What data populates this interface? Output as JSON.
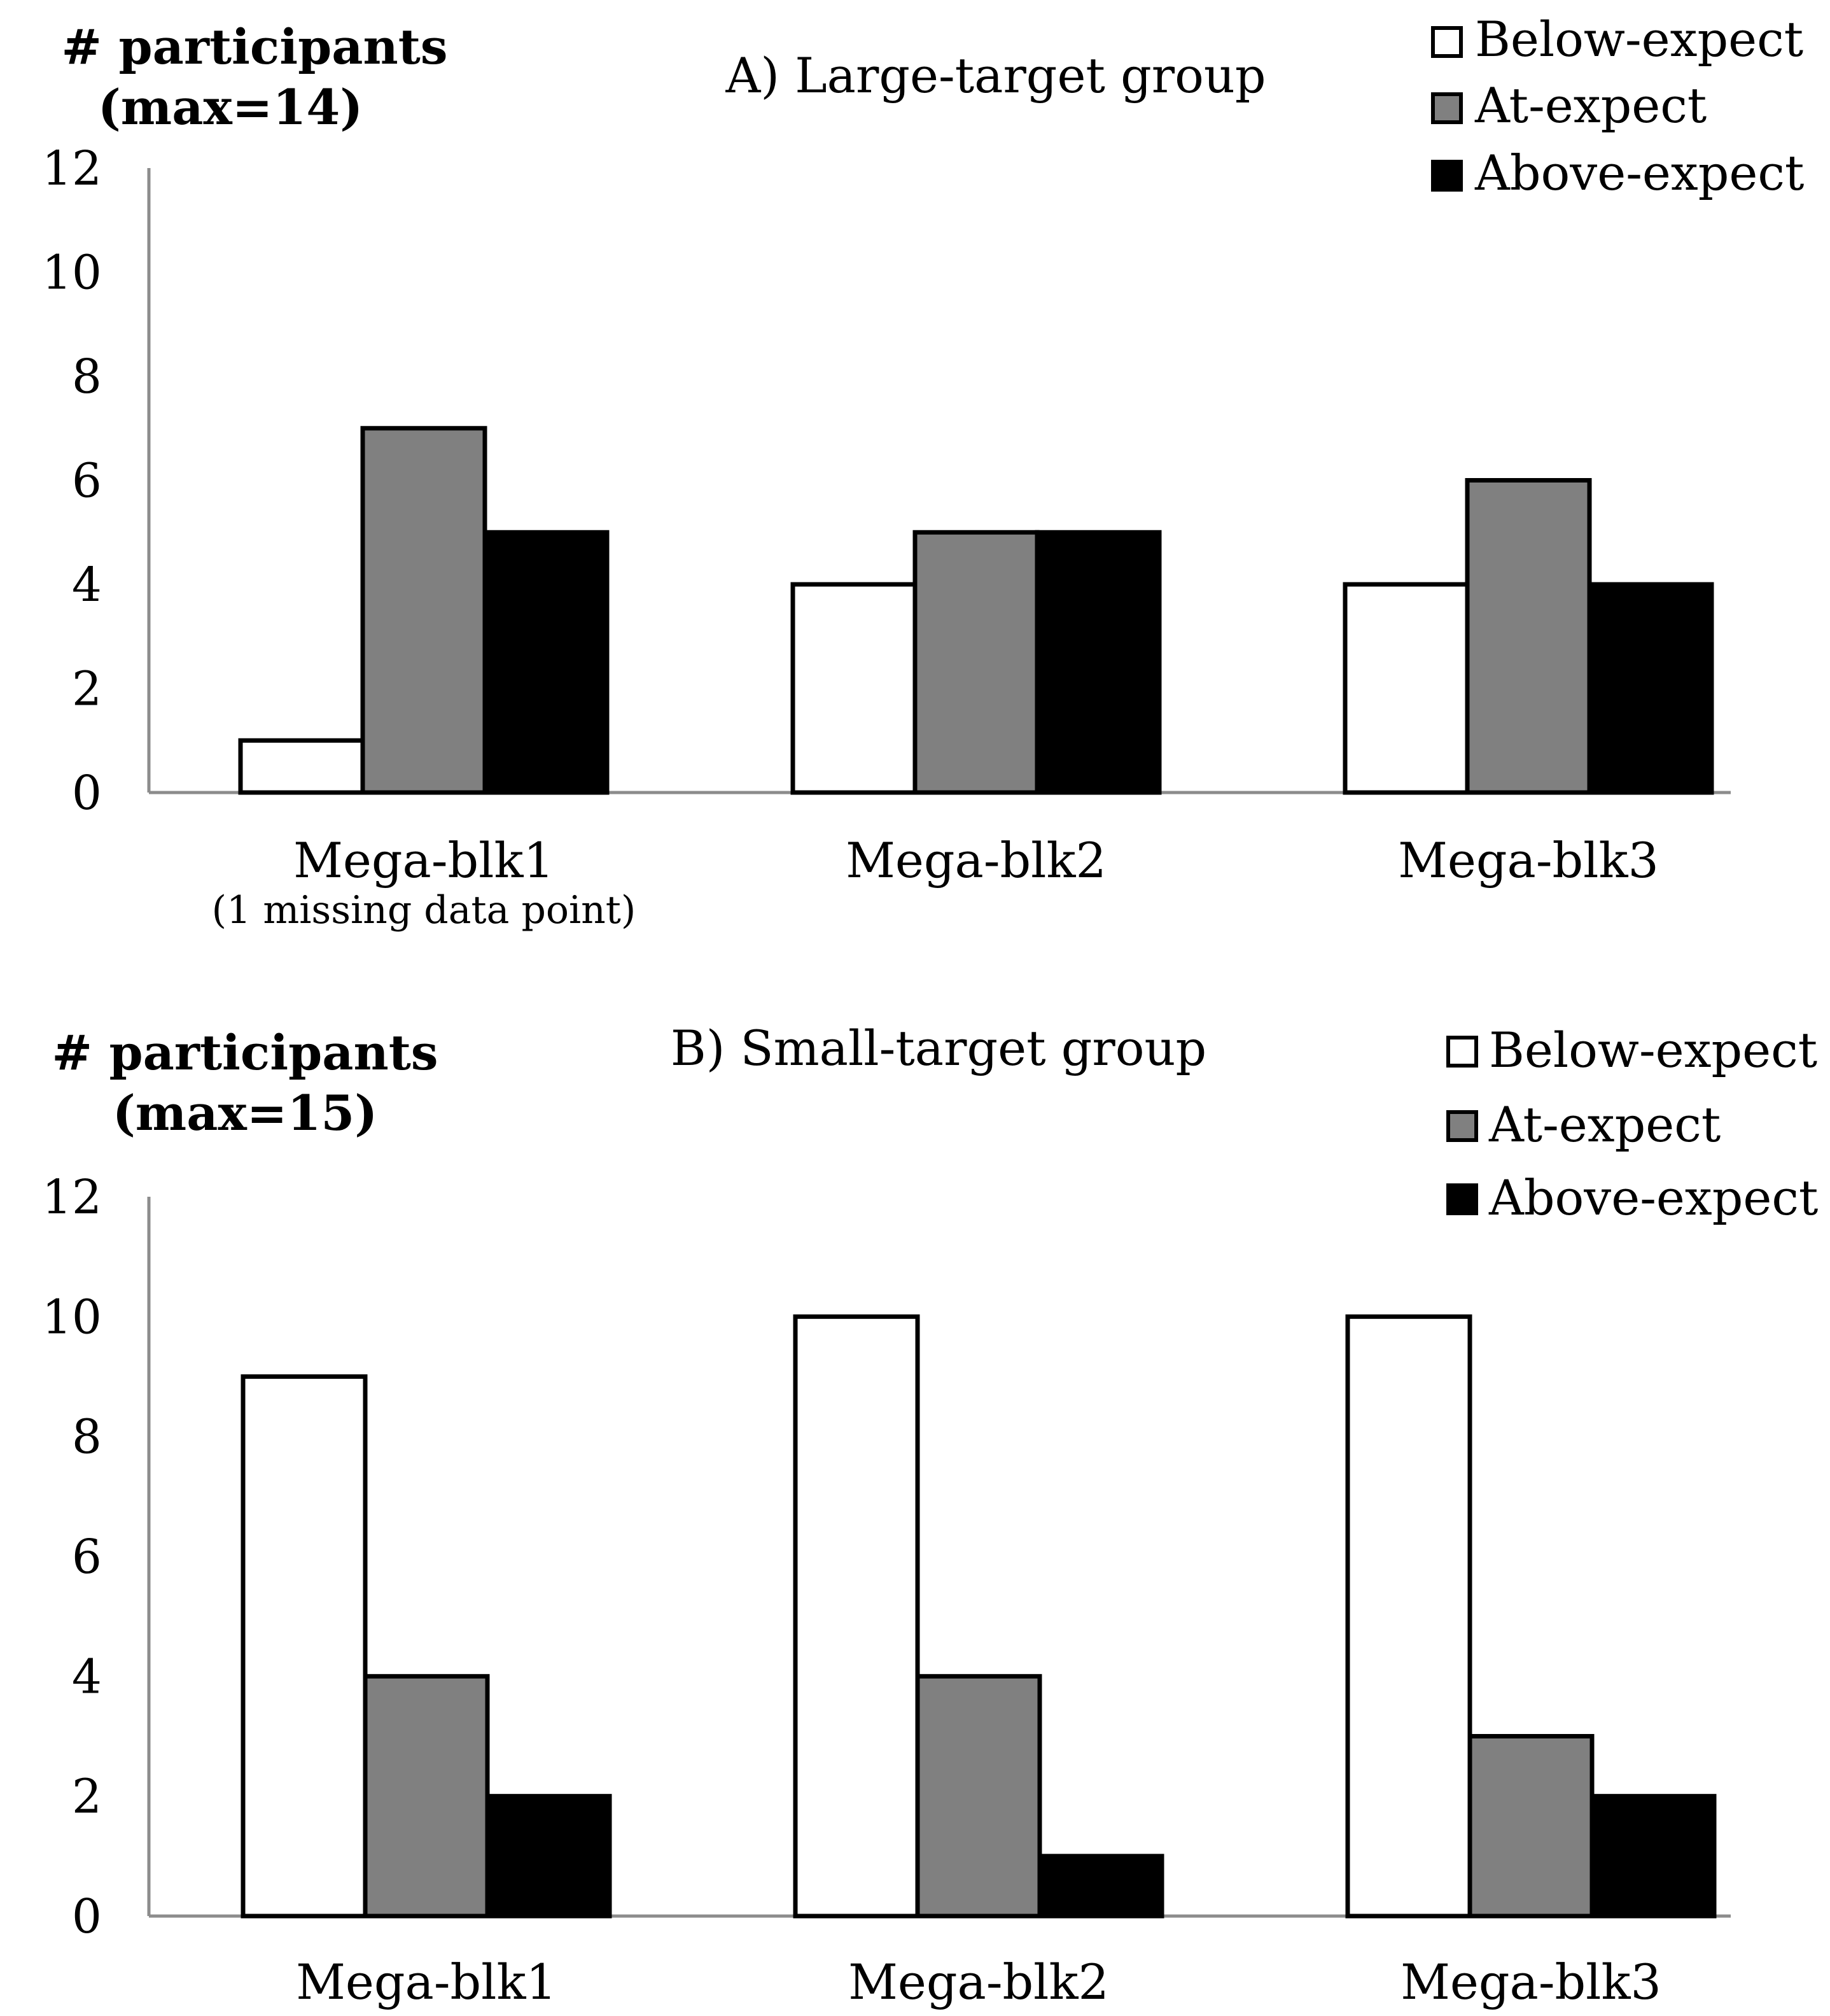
{
  "chart_data": [
    {
      "type": "bar",
      "title": "A) Large-target group",
      "ylabel_lines": [
        "# participants",
        "(max=14)"
      ],
      "xlabel": "",
      "categories": [
        "Mega-blk1",
        "Mega-blk2",
        "Mega-blk3"
      ],
      "category_notes": [
        "(1 missing data point)",
        "",
        ""
      ],
      "series": [
        {
          "name": "Below-expect",
          "color": "#ffffff",
          "values": [
            1,
            4,
            4
          ]
        },
        {
          "name": "At-expect",
          "color": "#808080",
          "values": [
            7,
            5,
            6
          ]
        },
        {
          "name": "Above-expect",
          "color": "#000000",
          "values": [
            5,
            5,
            4
          ]
        }
      ],
      "ylim": [
        0,
        12
      ],
      "yticks": [
        "0",
        "2",
        "4",
        "6",
        "8",
        "10",
        "12"
      ],
      "grid": false,
      "legend_position": "top-right"
    },
    {
      "type": "bar",
      "title": "B) Small-target group",
      "ylabel_lines": [
        "# participants",
        "(max=15)"
      ],
      "xlabel": "",
      "categories": [
        "Mega-blk1",
        "Mega-blk2",
        "Mega-blk3"
      ],
      "category_notes": [
        "",
        "",
        ""
      ],
      "series": [
        {
          "name": "Below-expect",
          "color": "#ffffff",
          "values": [
            9,
            10,
            10
          ]
        },
        {
          "name": "At-expect",
          "color": "#808080",
          "values": [
            4,
            4,
            3
          ]
        },
        {
          "name": "Above-expect",
          "color": "#000000",
          "values": [
            2,
            1,
            2
          ]
        }
      ],
      "ylim": [
        0,
        12
      ],
      "yticks": [
        "0",
        "2",
        "4",
        "6",
        "8",
        "10",
        "12"
      ],
      "grid": false,
      "legend_position": "top-right"
    }
  ]
}
